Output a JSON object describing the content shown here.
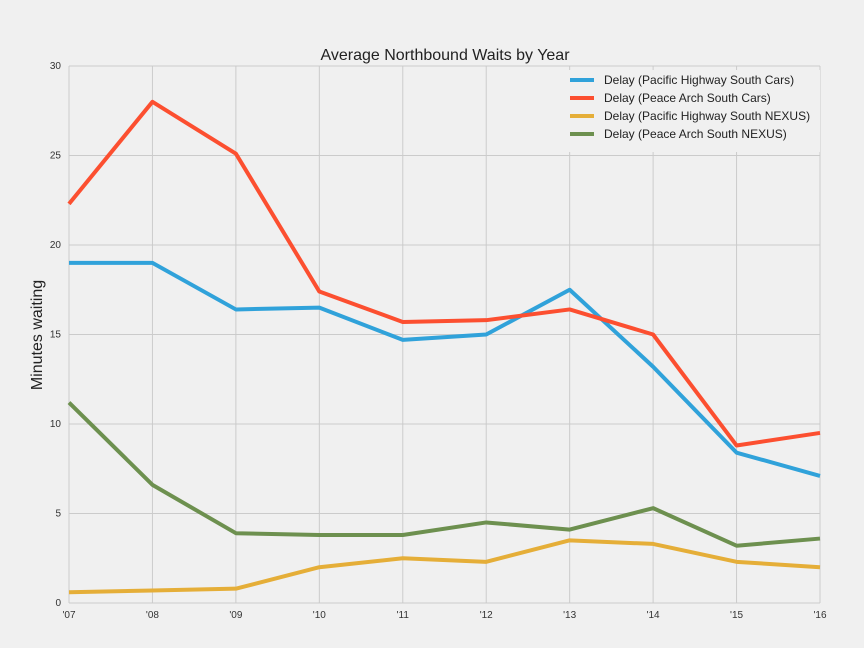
{
  "chart_data": {
    "type": "line",
    "title": "Average Northbound Waits by Year",
    "xlabel": "",
    "ylabel": "Minutes waiting",
    "categories": [
      "'07",
      "'08",
      "'09",
      "'10",
      "'11",
      "'12",
      "'13",
      "'14",
      "'15",
      "'16"
    ],
    "x": [
      2007,
      2008,
      2009,
      2010,
      2011,
      2012,
      2013,
      2014,
      2015,
      2016
    ],
    "xlim": [
      2007,
      2016
    ],
    "ylim": [
      0,
      30
    ],
    "yticks": [
      0,
      5,
      10,
      15,
      20,
      25,
      30
    ],
    "grid": true,
    "legend_position": "top-right",
    "series": [
      {
        "name": "Delay (Pacific Highway South Cars)",
        "color": "#30a2da",
        "values": [
          19.0,
          19.0,
          16.4,
          16.5,
          14.7,
          15.0,
          17.5,
          13.2,
          8.4,
          7.1
        ]
      },
      {
        "name": "Delay (Peace Arch South Cars)",
        "color": "#fc4f30",
        "values": [
          22.3,
          28.0,
          25.1,
          17.4,
          15.7,
          15.8,
          16.4,
          15.0,
          8.8,
          9.5
        ]
      },
      {
        "name": "Delay (Pacific Highway South NEXUS)",
        "color": "#e5ae38",
        "values": [
          0.6,
          0.7,
          0.8,
          2.0,
          2.5,
          2.3,
          3.5,
          3.3,
          2.3,
          2.0
        ]
      },
      {
        "name": "Delay (Peace Arch South NEXUS)",
        "color": "#6d904f",
        "values": [
          11.2,
          6.6,
          3.9,
          3.8,
          3.8,
          4.5,
          4.1,
          5.3,
          3.2,
          3.6
        ]
      }
    ]
  }
}
